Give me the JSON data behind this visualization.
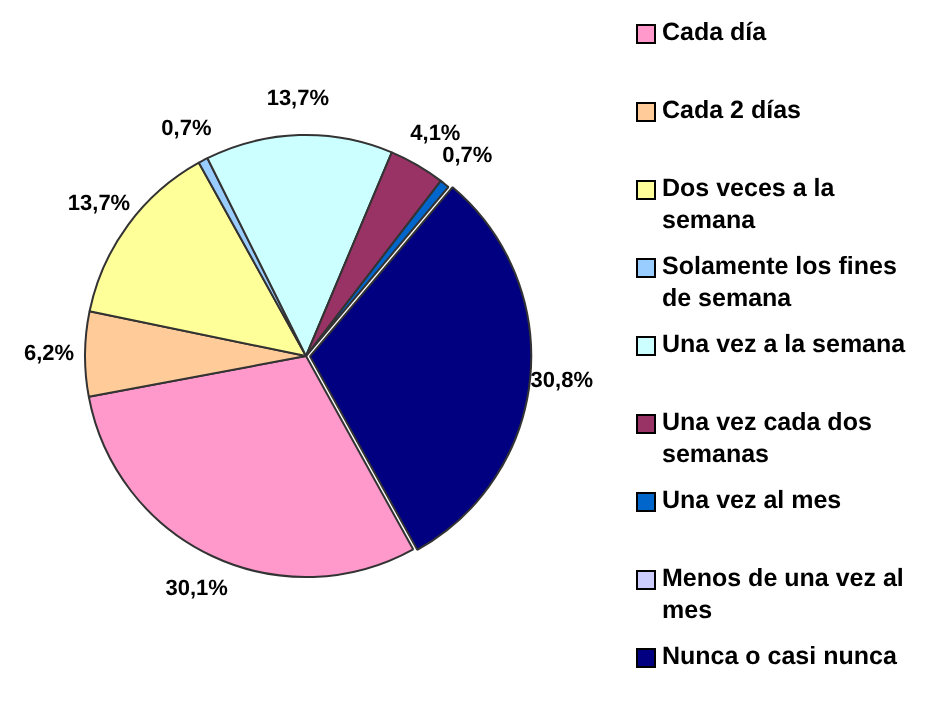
{
  "chart_data": {
    "type": "pie",
    "categories": [
      "Cada día",
      "Cada 2 días",
      "Dos veces a la semana",
      "Solamente los fines de semana",
      "Una vez a la semana",
      "Una vez cada dos semanas",
      "Una vez al mes",
      "Menos de una vez al mes",
      "Nunca o casi nunca"
    ],
    "values": [
      30.1,
      6.2,
      13.7,
      0.7,
      13.7,
      4.1,
      0.7,
      0,
      30.8
    ],
    "colors": [
      "#ff99cc",
      "#ffcc99",
      "#ffff99",
      "#99ccff",
      "#ccffff",
      "#993366",
      "#0066cc",
      "#ccccff",
      "#000080"
    ],
    "value_labels": [
      "30,1%",
      "6,2%",
      "13,7%",
      "0,7%",
      "13,7%",
      "4,1%",
      "0,7%",
      null,
      "30,8%"
    ],
    "legend": "right"
  }
}
